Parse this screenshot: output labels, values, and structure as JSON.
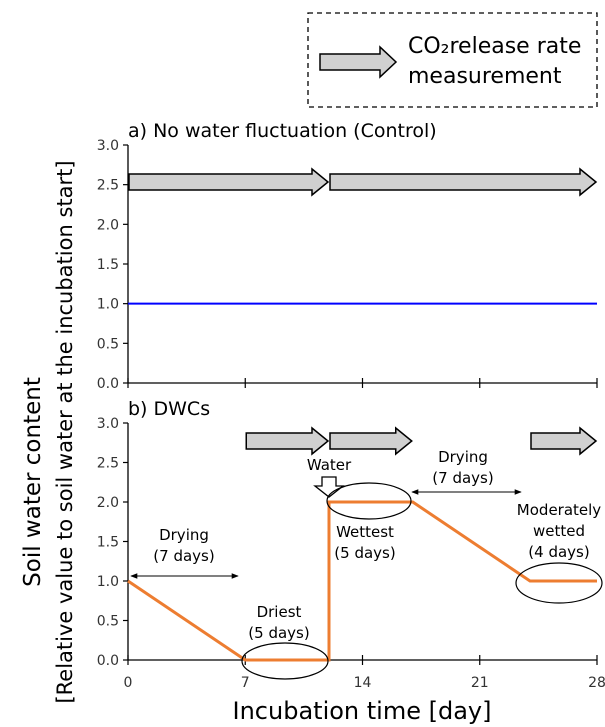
{
  "legend": {
    "line1": "CO₂release rate",
    "line2": "measurement"
  },
  "y_axis_label_1": "Soil water content",
  "y_axis_label_2": "[Relative value to soil water at the incubation start]",
  "x_axis_label": "Incubation time [day]",
  "colors": {
    "control_line": "#0000ff",
    "dwc_line": "#ed7d31",
    "arrow_fill": "#d0d0d0"
  },
  "chart_data": [
    {
      "type": "line",
      "title": "a) No water fluctuation (Control)",
      "xlim": [
        0,
        28
      ],
      "ylim": [
        0,
        3
      ],
      "yticks": [
        "0.0",
        "0.5",
        "1.0",
        "1.5",
        "2.0",
        "2.5",
        "3.0"
      ],
      "series": [
        {
          "x": [
            0,
            28
          ],
          "y": [
            1.0,
            1.0
          ]
        }
      ],
      "measurement_periods": [
        [
          0,
          12
        ],
        [
          12,
          28
        ]
      ]
    },
    {
      "type": "line",
      "title": "b) DWCs",
      "xlim": [
        0,
        28
      ],
      "ylim": [
        0,
        3
      ],
      "yticks": [
        "0.0",
        "0.5",
        "1.0",
        "1.5",
        "2.0",
        "2.5",
        "3.0"
      ],
      "xticks": [
        "0",
        "7",
        "14",
        "21",
        "28"
      ],
      "series": [
        {
          "x": [
            0,
            7,
            12,
            12,
            17,
            24,
            28
          ],
          "y": [
            1.0,
            0.0,
            0.0,
            2.0,
            2.0,
            1.0,
            1.0
          ]
        }
      ],
      "measurement_periods": [
        [
          7,
          12
        ],
        [
          12,
          17
        ],
        [
          24,
          28
        ]
      ],
      "annotations": {
        "drying1": [
          "Drying",
          "(7 days)"
        ],
        "driest": [
          "Driest",
          "(5 days)"
        ],
        "water": "Water",
        "wettest": [
          "Wettest",
          "(5 days)"
        ],
        "drying2": [
          "Drying",
          "(7 days)"
        ],
        "moderate": [
          "Moderately",
          "wetted",
          "(4 days)"
        ]
      }
    }
  ]
}
